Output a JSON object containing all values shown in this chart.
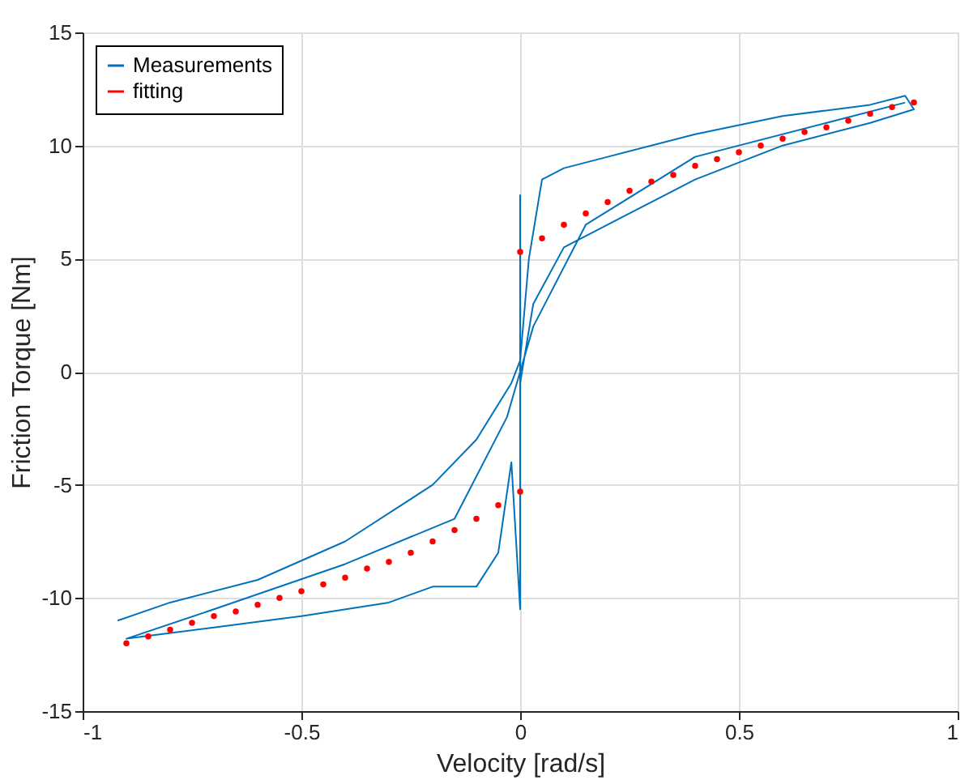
{
  "chart_data": {
    "type": "line",
    "xlabel": "Velocity [rad/s]",
    "ylabel": "Friction Torque [Nm]",
    "xlim": [
      -1,
      1
    ],
    "xticks": [
      -1,
      -0.5,
      0,
      0.5,
      1
    ],
    "ylim": [
      -15,
      15
    ],
    "yticks": [
      -15,
      -10,
      -5,
      0,
      5,
      10,
      15
    ],
    "grid": true,
    "legend": "top left",
    "series": [
      {
        "name": "Measurements",
        "type": "line",
        "color": "#0072bd",
        "marker": "none",
        "x": [
          -0.92,
          -0.8,
          -0.6,
          -0.4,
          -0.2,
          -0.1,
          -0.02,
          0,
          0.02,
          0.05,
          0.1,
          0.2,
          0.4,
          0.6,
          0.8,
          0.88,
          0.9,
          0.8,
          0.6,
          0.4,
          0.2,
          0.1,
          0.03,
          0,
          0,
          0,
          -0.02,
          -0.05,
          -0.1,
          -0.2,
          -0.3,
          -0.5,
          -0.7,
          -0.9,
          -0.7,
          -0.4,
          -0.15,
          -0.03,
          0,
          0.03,
          0.15,
          0.4,
          0.7,
          0.88
        ],
        "values": [
          -11.0,
          -10.2,
          -9.2,
          -7.5,
          -5.0,
          -3.0,
          -0.5,
          0.5,
          5.0,
          8.5,
          9.0,
          9.5,
          10.5,
          11.3,
          11.8,
          12.2,
          11.6,
          11.0,
          10.0,
          8.5,
          6.5,
          5.5,
          3.0,
          -0.5,
          7.8,
          -10.5,
          -4.0,
          -8.0,
          -9.5,
          -9.5,
          -10.2,
          -10.8,
          -11.3,
          -11.8,
          -10.5,
          -8.5,
          -6.5,
          -2.0,
          0.0,
          2.0,
          6.5,
          9.5,
          11.0,
          11.9
        ]
      },
      {
        "name": "fitting",
        "type": "scatter",
        "color": "#ff0000",
        "marker": "circle",
        "x": [
          -0.9,
          -0.85,
          -0.8,
          -0.75,
          -0.7,
          -0.65,
          -0.6,
          -0.55,
          -0.5,
          -0.45,
          -0.4,
          -0.35,
          -0.3,
          -0.25,
          -0.2,
          -0.15,
          -0.1,
          -0.05,
          0,
          0,
          0.05,
          0.1,
          0.15,
          0.2,
          0.25,
          0.3,
          0.35,
          0.4,
          0.45,
          0.5,
          0.55,
          0.6,
          0.65,
          0.7,
          0.75,
          0.8,
          0.85,
          0.9
        ],
        "values": [
          -12.0,
          -11.7,
          -11.4,
          -11.1,
          -10.8,
          -10.6,
          -10.3,
          -10.0,
          -9.7,
          -9.4,
          -9.1,
          -8.7,
          -8.4,
          -8.0,
          -7.5,
          -7.0,
          -6.5,
          -5.9,
          -5.3,
          5.3,
          5.9,
          6.5,
          7.0,
          7.5,
          8.0,
          8.4,
          8.7,
          9.1,
          9.4,
          9.7,
          10.0,
          10.3,
          10.6,
          10.8,
          11.1,
          11.4,
          11.7,
          11.9
        ]
      }
    ]
  }
}
